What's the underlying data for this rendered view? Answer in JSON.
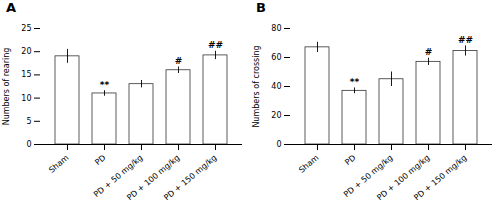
{
  "chart_data": [
    {
      "type": "bar",
      "title": "A",
      "categories": [
        "Sham",
        "PD",
        "PD + 50 mg/kg",
        "PD + 100 mg/kg",
        "PD + 150 mg/kg"
      ],
      "values": [
        19.0,
        11.0,
        13.0,
        16.0,
        19.2
      ],
      "errors": [
        1.5,
        0.6,
        0.8,
        0.7,
        0.9
      ],
      "ylabel": "Numbers of rearing",
      "ylim": [
        0,
        25
      ],
      "yticks": [
        0,
        5,
        10,
        15,
        20,
        25
      ],
      "annotations": [
        {
          "category": "PD",
          "text": "**"
        },
        {
          "category": "PD + 100 mg/kg",
          "text": "#"
        },
        {
          "category": "PD + 150 mg/kg",
          "text": "##"
        }
      ],
      "color": "white"
    },
    {
      "type": "bar",
      "title": "B",
      "categories": [
        "Sham",
        "PD",
        "PD + 50 mg/kg",
        "PD + 100 mg/kg",
        "PD + 150 mg/kg"
      ],
      "values": [
        67.0,
        37.0,
        45.0,
        57.0,
        64.5
      ],
      "errors": [
        3.5,
        2.0,
        5.0,
        2.5,
        3.5
      ],
      "ylabel": "Numbers of crossing",
      "ylim": [
        0,
        80
      ],
      "yticks": [
        0,
        20,
        40,
        60,
        80
      ],
      "annotations": [
        {
          "category": "PD",
          "text": "**"
        },
        {
          "category": "PD + 100 mg/kg",
          "text": "#"
        },
        {
          "category": "PD + 150 mg/kg",
          "text": "##"
        }
      ],
      "color": "white"
    }
  ]
}
